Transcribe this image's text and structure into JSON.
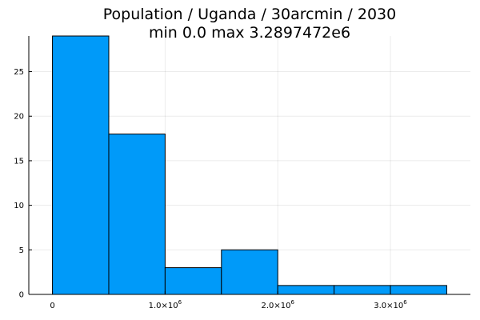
{
  "chart_data": {
    "type": "bar",
    "title": "Population / Uganda / 30arcmin / 2030",
    "subtitle": "min 0.0  max 3.2897472e6",
    "xlabel": "",
    "ylabel": "",
    "bins": [
      {
        "x0": 0,
        "x1": 500000,
        "count": 29
      },
      {
        "x0": 500000,
        "x1": 1000000,
        "count": 18
      },
      {
        "x0": 1000000,
        "x1": 1500000,
        "count": 3
      },
      {
        "x0": 1500000,
        "x1": 2000000,
        "count": 5
      },
      {
        "x0": 2000000,
        "x1": 2500000,
        "count": 1
      },
      {
        "x0": 2500000,
        "x1": 3000000,
        "count": 1
      },
      {
        "x0": 3000000,
        "x1": 3500000,
        "count": 1
      }
    ],
    "xlim": [
      -210000,
      3710000
    ],
    "ylim": [
      0,
      29
    ],
    "x_ticks": [
      {
        "value": 0,
        "label": "0",
        "exp": ""
      },
      {
        "value": 1000000,
        "label": "1.0×10",
        "exp": "6"
      },
      {
        "value": 2000000,
        "label": "2.0×10",
        "exp": "6"
      },
      {
        "value": 3000000,
        "label": "3.0×10",
        "exp": "6"
      }
    ],
    "y_ticks": [
      {
        "value": 0,
        "label": "0"
      },
      {
        "value": 5,
        "label": "5"
      },
      {
        "value": 10,
        "label": "10"
      },
      {
        "value": 15,
        "label": "15"
      },
      {
        "value": 20,
        "label": "20"
      },
      {
        "value": 25,
        "label": "25"
      }
    ],
    "grid": true,
    "legend": "none",
    "bar_color": "#009af9",
    "edge_color": "#000000"
  }
}
